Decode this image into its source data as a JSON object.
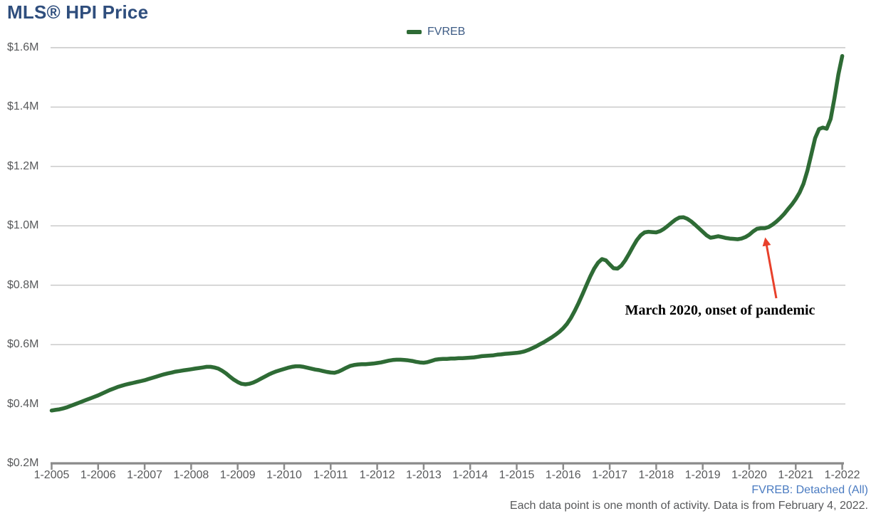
{
  "page": {
    "title": "MLS® HPI Price"
  },
  "legend": {
    "label": "FVREB"
  },
  "annotation": {
    "text": "March 2020, onset of pandemic"
  },
  "footer": {
    "series_note": "FVREB: Detached (All)",
    "data_note": "Each data point is one month of activity. Data is from February 4, 2022."
  },
  "colors": {
    "line": "#2E6B35",
    "title_text": "#2F4E7D",
    "legend_text": "#3E5C85",
    "axis_text": "#58595B",
    "gridline": "#C6C6C6",
    "axis_line": "#8A8A8A",
    "footer_link": "#4A7BC1",
    "arrow": "#E8402B"
  },
  "chart_data": {
    "type": "line",
    "title": "MLS® HPI Price",
    "xlabel": "",
    "ylabel": "",
    "legend_position": "top-center",
    "grid": "horizontal",
    "frequency": "monthly",
    "x_start_month": "1-2005",
    "x_end_month": "1-2022",
    "x_tick_labels": [
      "1-2005",
      "1-2006",
      "1-2007",
      "1-2008",
      "1-2009",
      "1-2010",
      "1-2011",
      "1-2012",
      "1-2013",
      "1-2014",
      "1-2015",
      "1-2016",
      "1-2017",
      "1-2018",
      "1-2019",
      "1-2020",
      "1-2021",
      "1-2022"
    ],
    "y_tick_labels": [
      "$1.6M",
      "$1.4M",
      "$1.2M",
      "$1.0M",
      "$0.8M",
      "$0.6M",
      "$0.4M",
      "$0.2M"
    ],
    "y_ticks_millions": [
      1.6,
      1.4,
      1.2,
      1.0,
      0.8,
      0.6,
      0.4,
      0.2
    ],
    "ylim_millions": [
      0.2,
      1.6
    ],
    "annotation": {
      "text": "March 2020, onset of pandemic",
      "points_to_month": "3-2020",
      "points_to_value_millions": 0.99
    },
    "series": [
      {
        "name": "FVREB",
        "color": "#2E6B35",
        "monthly_values_millions": {
          "2005": [
            0.378,
            0.38,
            0.382,
            0.385,
            0.389,
            0.394,
            0.399,
            0.404,
            0.409,
            0.414,
            0.419,
            0.424
          ],
          "2006": [
            0.429,
            0.435,
            0.441,
            0.447,
            0.452,
            0.457,
            0.461,
            0.465,
            0.468,
            0.471,
            0.474,
            0.477
          ],
          "2007": [
            0.48,
            0.484,
            0.488,
            0.492,
            0.496,
            0.5,
            0.503,
            0.506,
            0.509,
            0.511,
            0.513,
            0.515
          ],
          "2008": [
            0.517,
            0.519,
            0.521,
            0.523,
            0.525,
            0.525,
            0.523,
            0.519,
            0.512,
            0.503,
            0.492,
            0.482
          ],
          "2009": [
            0.474,
            0.468,
            0.466,
            0.468,
            0.472,
            0.478,
            0.485,
            0.492,
            0.499,
            0.505,
            0.51,
            0.514
          ],
          "2010": [
            0.518,
            0.522,
            0.525,
            0.527,
            0.527,
            0.525,
            0.522,
            0.519,
            0.516,
            0.514,
            0.511,
            0.508
          ],
          "2011": [
            0.506,
            0.505,
            0.509,
            0.515,
            0.522,
            0.528,
            0.531,
            0.533,
            0.534,
            0.534,
            0.535,
            0.536
          ],
          "2012": [
            0.538,
            0.54,
            0.543,
            0.546,
            0.548,
            0.549,
            0.549,
            0.548,
            0.547,
            0.545,
            0.542,
            0.54
          ],
          "2013": [
            0.539,
            0.541,
            0.545,
            0.549,
            0.551,
            0.552,
            0.552,
            0.553,
            0.553,
            0.554,
            0.554,
            0.555
          ],
          "2014": [
            0.556,
            0.557,
            0.559,
            0.561,
            0.562,
            0.563,
            0.564,
            0.566,
            0.567,
            0.569,
            0.57,
            0.571
          ],
          "2015": [
            0.572,
            0.574,
            0.577,
            0.582,
            0.588,
            0.594,
            0.601,
            0.608,
            0.616,
            0.624,
            0.633,
            0.643
          ],
          "2016": [
            0.655,
            0.67,
            0.69,
            0.714,
            0.741,
            0.77,
            0.8,
            0.83,
            0.856,
            0.876,
            0.888,
            0.884
          ],
          "2017": [
            0.87,
            0.857,
            0.856,
            0.866,
            0.884,
            0.906,
            0.93,
            0.952,
            0.968,
            0.978,
            0.98,
            0.979
          ],
          "2018": [
            0.978,
            0.982,
            0.99,
            1.0,
            1.011,
            1.021,
            1.028,
            1.029,
            1.024,
            1.015,
            1.004,
            0.992
          ],
          "2019": [
            0.98,
            0.968,
            0.96,
            0.962,
            0.965,
            0.962,
            0.959,
            0.957,
            0.956,
            0.955,
            0.957,
            0.962
          ],
          "2020": [
            0.97,
            0.981,
            0.99,
            0.992,
            0.992,
            0.996,
            1.004,
            1.014,
            1.026,
            1.04,
            1.056,
            1.072
          ],
          "2021": [
            1.09,
            1.112,
            1.142,
            1.185,
            1.24,
            1.295,
            1.326,
            1.331,
            1.327,
            1.36,
            1.43,
            1.51
          ],
          "2022": [
            1.572
          ]
        }
      }
    ]
  }
}
